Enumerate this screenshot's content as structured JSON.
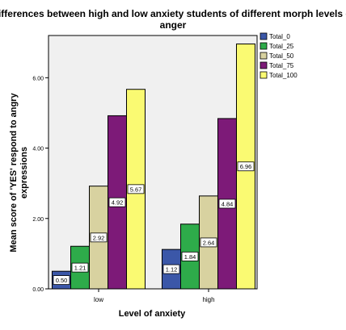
{
  "chart_data": {
    "type": "bar",
    "title": "Differences between high and low anxiety students of different morph levels of",
    "title_line2": "anger",
    "xlabel": "Level of anxiety",
    "ylabel_line1": "Mean score of 'YES' respond to angry",
    "ylabel_line2": "expressions",
    "categories": [
      "low",
      "high"
    ],
    "ylim": [
      0,
      7.2
    ],
    "yticks": [
      0,
      2,
      4,
      6
    ],
    "ytick_labels": [
      "0.00",
      "2.00",
      "4.00",
      "6.00"
    ],
    "grid": false,
    "legend_position": "top-right",
    "plot_background": "#f0f0f0",
    "series": [
      {
        "name": "Total_0",
        "color": "#3b57a8",
        "values": [
          0.5,
          1.12
        ],
        "labels": [
          "0.50",
          "1.12"
        ]
      },
      {
        "name": "Total_25",
        "color": "#2eab4a",
        "values": [
          1.21,
          1.84
        ],
        "labels": [
          "1.21",
          "1.84"
        ]
      },
      {
        "name": "Total_50",
        "color": "#d8d2a0",
        "values": [
          2.92,
          2.64
        ],
        "labels": [
          "2.92",
          "2.64"
        ]
      },
      {
        "name": "Total_75",
        "color": "#7d1a78",
        "values": [
          4.92,
          4.84
        ],
        "labels": [
          "4.92",
          "4.84"
        ]
      },
      {
        "name": "Total_100",
        "color": "#fafa72",
        "values": [
          5.67,
          6.96
        ],
        "labels": [
          "5.67",
          "6.96"
        ]
      }
    ]
  }
}
